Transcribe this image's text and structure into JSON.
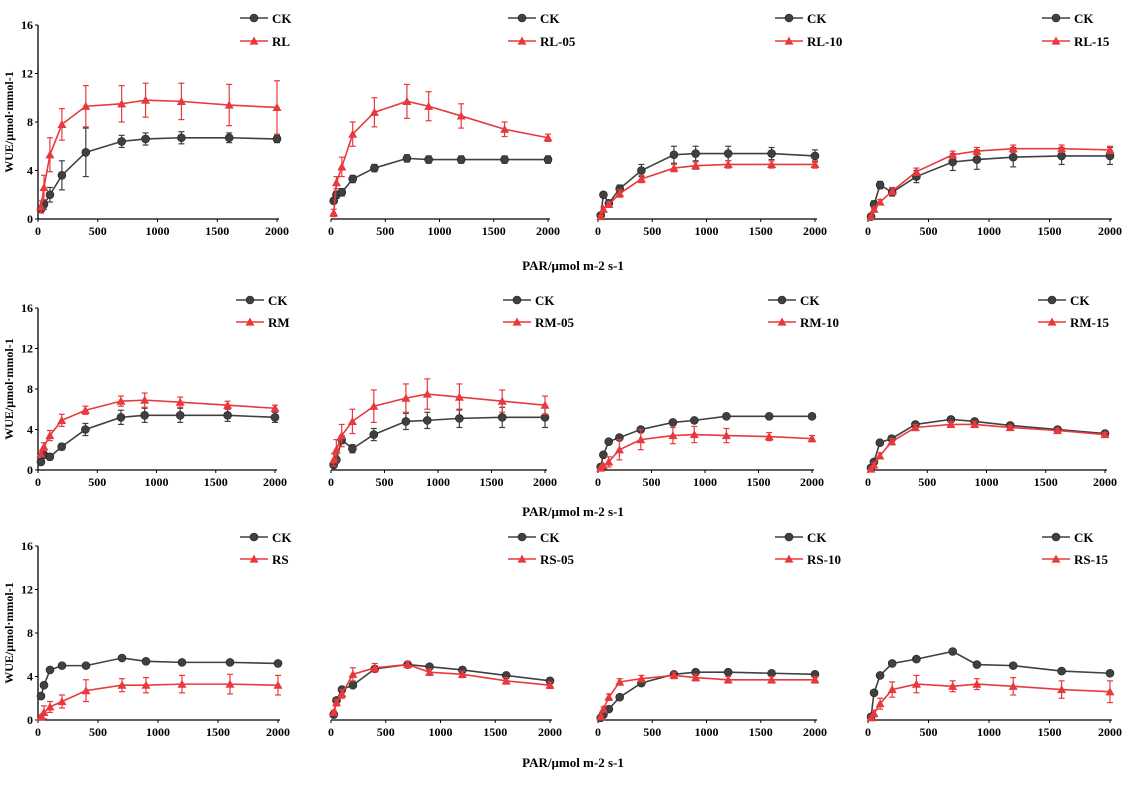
{
  "figure": {
    "row_xlabels": [
      "PAR/μmol m-2 s-1",
      "PAR/μmol m-2 s-1",
      "PAR/μmol m-2 s-1"
    ],
    "row_ylabels": [
      "WUE/μmol·mmol-1",
      "WUE/μmol·mmol-1",
      "WUE/μmol·mmol-1"
    ],
    "colors": {
      "ck": "#404040",
      "treatment": "#e8393d"
    }
  },
  "chart_data": [
    {
      "type": "line",
      "row": 0,
      "col": 0,
      "xlim": [
        0,
        2000
      ],
      "ylim": [
        0,
        16
      ],
      "x_ticks": [
        0,
        500,
        1000,
        1500,
        2000
      ],
      "y_ticks": [
        0,
        4,
        8,
        12,
        16
      ],
      "x": [
        25,
        50,
        100,
        200,
        400,
        700,
        900,
        1200,
        1600,
        2000
      ],
      "series": [
        {
          "name": "CK",
          "values": [
            0.8,
            1.2,
            2.0,
            3.6,
            5.5,
            6.4,
            6.6,
            6.7,
            6.7,
            6.6
          ],
          "errors": [
            0.3,
            0.4,
            0.6,
            1.2,
            2.0,
            0.5,
            0.5,
            0.5,
            0.4,
            0.3
          ]
        },
        {
          "name": "RL",
          "values": [
            1.0,
            2.6,
            5.3,
            7.8,
            9.3,
            9.5,
            9.8,
            9.7,
            9.4,
            9.2
          ],
          "errors": [
            0.5,
            1.0,
            1.4,
            1.3,
            1.7,
            1.5,
            1.4,
            1.5,
            1.7,
            2.2
          ]
        }
      ]
    },
    {
      "type": "line",
      "row": 0,
      "col": 1,
      "xlim": [
        0,
        2000
      ],
      "ylim": [
        0,
        16
      ],
      "x_ticks": [
        0,
        500,
        1000,
        1500,
        2000
      ],
      "y_ticks": [],
      "x": [
        25,
        50,
        100,
        200,
        400,
        700,
        900,
        1200,
        1600,
        2000
      ],
      "series": [
        {
          "name": "CK",
          "values": [
            1.5,
            2.0,
            2.2,
            3.3,
            4.2,
            5.0,
            4.9,
            4.9,
            4.9,
            4.9
          ],
          "errors": [
            0.2,
            0.3,
            0.3,
            0.3,
            0.3,
            0.3,
            0.3,
            0.3,
            0.3,
            0.3
          ]
        },
        {
          "name": "RL-05",
          "values": [
            0.5,
            3.0,
            4.3,
            7.0,
            8.8,
            9.7,
            9.3,
            8.5,
            7.4,
            6.7
          ],
          "errors": [
            0.3,
            0.5,
            0.8,
            1.0,
            1.2,
            1.4,
            1.2,
            1.0,
            0.6,
            0.3
          ]
        }
      ]
    },
    {
      "type": "line",
      "row": 0,
      "col": 2,
      "xlim": [
        0,
        2000
      ],
      "ylim": [
        0,
        16
      ],
      "x_ticks": [
        0,
        500,
        1000,
        1500,
        2000
      ],
      "y_ticks": [],
      "x": [
        25,
        50,
        100,
        200,
        400,
        700,
        900,
        1200,
        1600,
        2000
      ],
      "series": [
        {
          "name": "CK",
          "values": [
            0.3,
            2.0,
            1.3,
            2.5,
            4.0,
            5.3,
            5.4,
            5.4,
            5.4,
            5.2
          ],
          "errors": [
            0.1,
            0.2,
            0.2,
            0.3,
            0.5,
            0.7,
            0.6,
            0.6,
            0.5,
            0.5
          ]
        },
        {
          "name": "RL-10",
          "values": [
            0.2,
            0.8,
            1.2,
            2.1,
            3.3,
            4.2,
            4.4,
            4.5,
            4.5,
            4.5
          ],
          "errors": [
            0.1,
            0.2,
            0.2,
            0.3,
            0.3,
            0.3,
            0.3,
            0.3,
            0.3,
            0.3
          ]
        }
      ]
    },
    {
      "type": "line",
      "row": 0,
      "col": 3,
      "xlim": [
        0,
        2000
      ],
      "ylim": [
        0,
        16
      ],
      "x_ticks": [
        0,
        500,
        1000,
        1500,
        2000
      ],
      "y_ticks": [],
      "x": [
        25,
        50,
        100,
        200,
        400,
        700,
        900,
        1200,
        1600,
        2000
      ],
      "series": [
        {
          "name": "CK",
          "values": [
            0.2,
            1.2,
            2.8,
            2.2,
            3.5,
            4.7,
            4.9,
            5.1,
            5.2,
            5.2
          ],
          "errors": [
            0.1,
            0.3,
            0.3,
            0.3,
            0.5,
            0.7,
            0.8,
            0.8,
            0.7,
            0.7
          ]
        },
        {
          "name": "RL-15",
          "values": [
            0.2,
            0.8,
            1.4,
            2.3,
            3.9,
            5.3,
            5.6,
            5.8,
            5.8,
            5.7
          ],
          "errors": [
            0.1,
            0.2,
            0.2,
            0.3,
            0.3,
            0.3,
            0.3,
            0.3,
            0.3,
            0.3
          ]
        }
      ]
    },
    {
      "type": "line",
      "row": 1,
      "col": 0,
      "xlim": [
        0,
        2000
      ],
      "ylim": [
        0,
        16
      ],
      "x_ticks": [
        0,
        500,
        1000,
        1500,
        2000
      ],
      "y_ticks": [
        0,
        4,
        8,
        12,
        16
      ],
      "x": [
        25,
        50,
        100,
        200,
        400,
        700,
        900,
        1200,
        1600,
        2000
      ],
      "series": [
        {
          "name": "CK",
          "values": [
            0.8,
            1.5,
            1.3,
            2.3,
            4.0,
            5.2,
            5.4,
            5.4,
            5.4,
            5.2
          ],
          "errors": [
            0.2,
            0.3,
            0.3,
            0.3,
            0.6,
            0.7,
            0.7,
            0.7,
            0.6,
            0.5
          ]
        },
        {
          "name": "RM",
          "values": [
            1.6,
            2.3,
            3.4,
            4.9,
            5.9,
            6.8,
            6.9,
            6.7,
            6.4,
            6.1
          ],
          "errors": [
            0.3,
            0.4,
            0.5,
            0.6,
            0.4,
            0.5,
            0.7,
            0.5,
            0.4,
            0.3
          ]
        }
      ]
    },
    {
      "type": "line",
      "row": 1,
      "col": 1,
      "xlim": [
        0,
        2000
      ],
      "ylim": [
        0,
        16
      ],
      "x_ticks": [
        0,
        500,
        1000,
        1500,
        2000
      ],
      "y_ticks": [],
      "x": [
        25,
        50,
        100,
        200,
        400,
        700,
        900,
        1200,
        1600,
        2000
      ],
      "series": [
        {
          "name": "CK",
          "values": [
            0.5,
            1.0,
            3.0,
            2.1,
            3.5,
            4.8,
            4.9,
            5.1,
            5.2,
            5.2
          ],
          "errors": [
            0.2,
            0.3,
            0.4,
            0.4,
            0.6,
            0.8,
            0.8,
            0.9,
            1.0,
            1.0
          ]
        },
        {
          "name": "RM-05",
          "values": [
            1.0,
            2.0,
            3.4,
            4.8,
            6.3,
            7.1,
            7.5,
            7.2,
            6.8,
            6.4
          ],
          "errors": [
            0.6,
            1.0,
            1.1,
            1.2,
            1.6,
            1.4,
            1.5,
            1.3,
            1.1,
            0.9
          ]
        }
      ]
    },
    {
      "type": "line",
      "row": 1,
      "col": 2,
      "xlim": [
        0,
        2000
      ],
      "ylim": [
        0,
        16
      ],
      "x_ticks": [
        0,
        500,
        1000,
        1500,
        2000
      ],
      "y_ticks": [],
      "x": [
        25,
        50,
        100,
        200,
        400,
        700,
        900,
        1200,
        1600,
        2000
      ],
      "series": [
        {
          "name": "CK",
          "values": [
            0.3,
            1.5,
            2.8,
            3.2,
            4.0,
            4.7,
            4.9,
            5.3,
            5.3,
            5.3
          ],
          "errors": [
            0.1,
            0.2,
            0.2,
            0.2,
            0.2,
            0.2,
            0.2,
            0.2,
            0.2,
            0.2
          ]
        },
        {
          "name": "RM-10",
          "values": [
            0.2,
            0.4,
            0.8,
            2.0,
            3.0,
            3.4,
            3.5,
            3.4,
            3.3,
            3.1
          ],
          "errors": [
            0.1,
            0.2,
            0.5,
            1.0,
            1.0,
            0.8,
            0.8,
            0.7,
            0.4,
            0.3
          ]
        }
      ]
    },
    {
      "type": "line",
      "row": 1,
      "col": 3,
      "xlim": [
        0,
        2000
      ],
      "ylim": [
        0,
        16
      ],
      "x_ticks": [
        0,
        500,
        1000,
        1500,
        2000
      ],
      "y_ticks": [],
      "x": [
        25,
        50,
        100,
        200,
        400,
        700,
        900,
        1200,
        1600,
        2000
      ],
      "series": [
        {
          "name": "CK",
          "values": [
            0.2,
            0.8,
            2.7,
            3.1,
            4.5,
            5.0,
            4.8,
            4.4,
            4.0,
            3.6
          ],
          "errors": [
            0.1,
            0.2,
            0.2,
            0.2,
            0.2,
            0.2,
            0.2,
            0.2,
            0.2,
            0.2
          ]
        },
        {
          "name": "RM-15",
          "values": [
            0.1,
            0.5,
            1.4,
            2.8,
            4.2,
            4.5,
            4.5,
            4.2,
            3.9,
            3.5
          ],
          "errors": [
            0.1,
            0.2,
            0.3,
            0.3,
            0.3,
            0.3,
            0.3,
            0.2,
            0.2,
            0.2
          ]
        }
      ]
    },
    {
      "type": "line",
      "row": 2,
      "col": 0,
      "xlim": [
        0,
        2000
      ],
      "ylim": [
        0,
        16
      ],
      "x_ticks": [
        0,
        500,
        1000,
        1500,
        2000
      ],
      "y_ticks": [
        0,
        4,
        8,
        12,
        16
      ],
      "x": [
        25,
        50,
        100,
        200,
        400,
        700,
        900,
        1200,
        1600,
        2000
      ],
      "series": [
        {
          "name": "CK",
          "values": [
            2.2,
            3.2,
            4.6,
            5.0,
            5.0,
            5.7,
            5.4,
            5.3,
            5.3,
            5.2
          ],
          "errors": [
            0.2,
            0.2,
            0.2,
            0.2,
            0.2,
            0.2,
            0.2,
            0.2,
            0.2,
            0.2
          ]
        },
        {
          "name": "RS",
          "values": [
            0.3,
            0.7,
            1.2,
            1.7,
            2.7,
            3.2,
            3.2,
            3.3,
            3.3,
            3.2
          ],
          "errors": [
            0.2,
            0.6,
            0.5,
            0.6,
            1.0,
            0.6,
            0.7,
            0.8,
            0.9,
            0.9
          ]
        }
      ]
    },
    {
      "type": "line",
      "row": 2,
      "col": 1,
      "xlim": [
        0,
        2000
      ],
      "ylim": [
        0,
        16
      ],
      "x_ticks": [
        0,
        500,
        1000,
        1500,
        2000
      ],
      "y_ticks": [],
      "x": [
        25,
        50,
        100,
        200,
        400,
        700,
        900,
        1200,
        1600,
        2000
      ],
      "series": [
        {
          "name": "CK",
          "values": [
            0.5,
            1.8,
            2.8,
            3.2,
            4.7,
            5.1,
            4.9,
            4.6,
            4.1,
            3.6
          ],
          "errors": [
            0.2,
            0.2,
            0.2,
            0.2,
            0.2,
            0.2,
            0.2,
            0.2,
            0.2,
            0.2
          ]
        },
        {
          "name": "RS-05",
          "values": [
            0.7,
            1.6,
            2.4,
            4.2,
            4.8,
            5.1,
            4.4,
            4.2,
            3.6,
            3.2
          ],
          "errors": [
            0.2,
            0.3,
            0.4,
            0.6,
            0.4,
            0.3,
            0.3,
            0.3,
            0.3,
            0.3
          ]
        }
      ]
    },
    {
      "type": "line",
      "row": 2,
      "col": 2,
      "xlim": [
        0,
        2000
      ],
      "ylim": [
        0,
        16
      ],
      "x_ticks": [
        0,
        500,
        1000,
        1500,
        2000
      ],
      "y_ticks": [],
      "x": [
        25,
        50,
        100,
        200,
        400,
        700,
        900,
        1200,
        1600,
        2000
      ],
      "series": [
        {
          "name": "CK",
          "values": [
            0.2,
            0.5,
            1.0,
            2.1,
            3.4,
            4.2,
            4.4,
            4.4,
            4.3,
            4.2
          ],
          "errors": [
            0.1,
            0.2,
            0.2,
            0.2,
            0.2,
            0.2,
            0.2,
            0.2,
            0.2,
            0.2
          ]
        },
        {
          "name": "RS-10",
          "values": [
            0.3,
            1.0,
            2.1,
            3.5,
            3.8,
            4.1,
            3.9,
            3.7,
            3.7,
            3.7
          ],
          "errors": [
            0.1,
            0.2,
            0.3,
            0.3,
            0.3,
            0.3,
            0.3,
            0.3,
            0.3,
            0.3
          ]
        }
      ]
    },
    {
      "type": "line",
      "row": 2,
      "col": 3,
      "xlim": [
        0,
        2000
      ],
      "ylim": [
        0,
        16
      ],
      "x_ticks": [
        0,
        500,
        1000,
        1500,
        2000
      ],
      "y_ticks": [],
      "x": [
        25,
        50,
        100,
        200,
        400,
        700,
        900,
        1200,
        1600,
        2000
      ],
      "series": [
        {
          "name": "CK",
          "values": [
            0.3,
            2.5,
            4.1,
            5.2,
            5.6,
            6.3,
            5.1,
            5.0,
            4.5,
            4.3
          ],
          "errors": [
            0.2,
            0.2,
            0.2,
            0.2,
            0.2,
            0.2,
            0.2,
            0.2,
            0.2,
            0.2
          ]
        },
        {
          "name": "RS-15",
          "values": [
            0.2,
            0.6,
            1.5,
            2.8,
            3.3,
            3.1,
            3.3,
            3.1,
            2.8,
            2.6
          ],
          "errors": [
            0.1,
            0.3,
            0.5,
            0.7,
            0.8,
            0.5,
            0.5,
            0.8,
            0.8,
            1.0
          ]
        }
      ]
    }
  ]
}
